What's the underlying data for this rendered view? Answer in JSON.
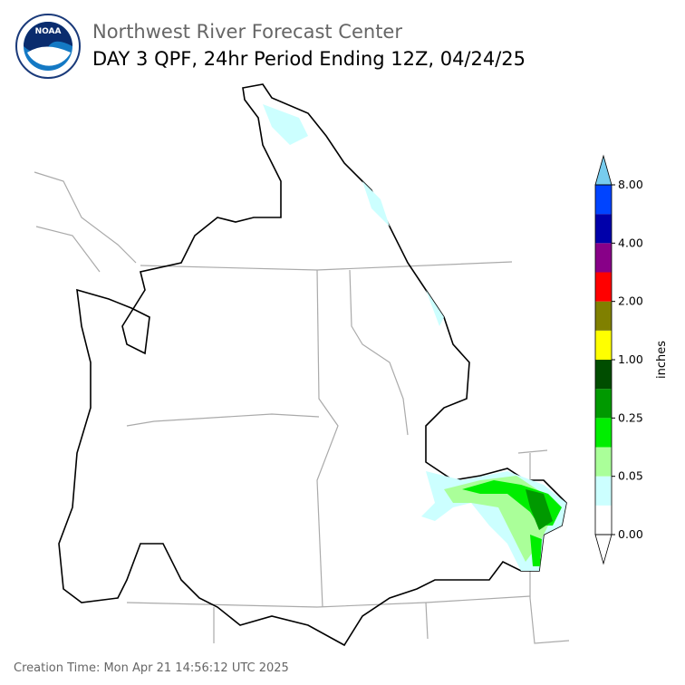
{
  "header": {
    "title": "Northwest River Forecast Center",
    "subtitle": "DAY 3 QPF, 24hr Period Ending 12Z, 04/24/25"
  },
  "colorbar": {
    "label": "inches",
    "ticks": [
      {
        "value": 0,
        "label": "0.00"
      },
      {
        "value": 0.05,
        "label": "0.05"
      },
      {
        "value": 0.25,
        "label": "0.25"
      },
      {
        "value": 1,
        "label": "1.00"
      },
      {
        "value": 2,
        "label": "2.00"
      },
      {
        "value": 4,
        "label": "4.00"
      },
      {
        "value": 8,
        "label": "8.00"
      }
    ],
    "colors": [
      "#ffffff",
      "#ccffff",
      "#aaff99",
      "#00ee00",
      "#009900",
      "#004d00",
      "#ffff00",
      "#808000",
      "#ff0000",
      "#880088",
      "#0000aa",
      "#0044ff"
    ],
    "under_color": "#ffffff",
    "over_color": "#77ccee"
  },
  "footer": {
    "creation_time": "Creation Time: Mon Apr 21 14:56:12 UTC 2025"
  }
}
